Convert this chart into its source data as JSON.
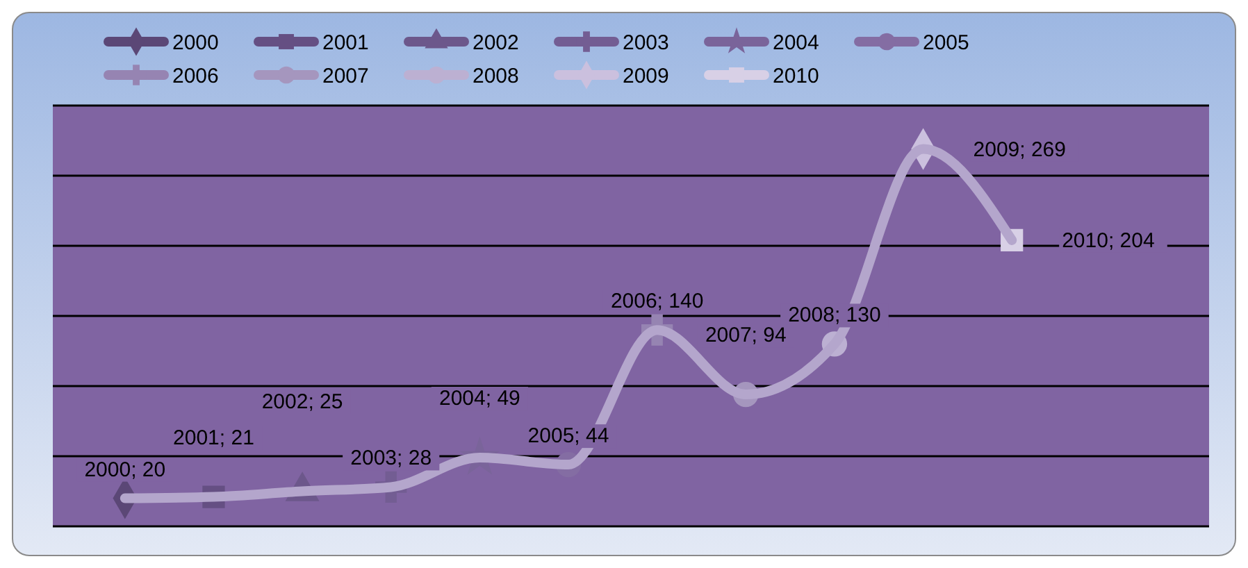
{
  "chart_data": {
    "type": "line",
    "categories": [
      null,
      null,
      null,
      null,
      null,
      null,
      null,
      null,
      null,
      null,
      null
    ],
    "ylim": [
      0,
      300
    ],
    "yticks": [
      {
        "value": 0,
        "label": null
      },
      {
        "value": 50,
        "label": null
      },
      {
        "value": 100,
        "label": null
      },
      {
        "value": 150,
        "label": null
      },
      {
        "value": 200,
        "label": null
      },
      {
        "value": 250,
        "label": null
      },
      {
        "value": 300,
        "label": null
      }
    ],
    "grid": "y",
    "legend": "top",
    "line_style": "solid",
    "series": [
      {
        "color": "#b4a6cc",
        "values": [
          20,
          21,
          25,
          28,
          49,
          44,
          140,
          94,
          130,
          269,
          204
        ]
      },
      {
        "name": "2000",
        "color": "#5b4776",
        "marker": "diamond",
        "values": [
          20,
          null,
          null,
          null,
          null,
          null,
          null,
          null,
          null,
          null,
          null
        ],
        "value_labels": [
          "2000; 20",
          null,
          null,
          null,
          null,
          null,
          null,
          null,
          null,
          null,
          null
        ]
      },
      {
        "name": "2001",
        "color": "#654f83",
        "marker": "square",
        "values": [
          null,
          21,
          null,
          null,
          null,
          null,
          null,
          null,
          null,
          null,
          null
        ],
        "value_labels": [
          null,
          "2001; 21",
          null,
          null,
          null,
          null,
          null,
          null,
          null,
          null,
          null
        ]
      },
      {
        "name": "2002",
        "color": "#6c578b",
        "marker": "triangle",
        "values": [
          null,
          null,
          25,
          null,
          null,
          null,
          null,
          null,
          null,
          null,
          null
        ],
        "value_labels": [
          null,
          null,
          "2002; 25",
          null,
          null,
          null,
          null,
          null,
          null,
          null,
          null
        ]
      },
      {
        "name": "2003",
        "color": "#735d93",
        "marker": "cross",
        "values": [
          null,
          null,
          null,
          28,
          null,
          null,
          null,
          null,
          null,
          null,
          null
        ],
        "value_labels": [
          null,
          null,
          null,
          "2003; 28",
          null,
          null,
          null,
          null,
          null,
          null,
          null
        ]
      },
      {
        "name": "2004",
        "color": "#7a649a",
        "marker": "star",
        "values": [
          null,
          null,
          null,
          null,
          49,
          null,
          null,
          null,
          null,
          null,
          null
        ],
        "value_labels": [
          null,
          null,
          null,
          null,
          "2004; 49",
          null,
          null,
          null,
          null,
          null,
          null
        ]
      },
      {
        "name": "2005",
        "color": "#846da3",
        "marker": "circle",
        "values": [
          null,
          null,
          null,
          null,
          null,
          44,
          null,
          null,
          null,
          null,
          null
        ],
        "value_labels": [
          null,
          null,
          null,
          null,
          null,
          "2005; 44",
          null,
          null,
          null,
          null,
          null
        ]
      },
      {
        "name": "2006",
        "color": "#9684b2",
        "marker": "cross",
        "values": [
          null,
          null,
          null,
          null,
          null,
          null,
          140,
          null,
          null,
          null,
          null
        ],
        "value_labels": [
          null,
          null,
          null,
          null,
          null,
          null,
          "2006; 140",
          null,
          null,
          null,
          null
        ]
      },
      {
        "name": "2007",
        "color": "#a596be",
        "marker": "circle",
        "values": [
          null,
          null,
          null,
          null,
          null,
          null,
          null,
          94,
          null,
          null,
          null
        ],
        "value_labels": [
          null,
          null,
          null,
          null,
          null,
          null,
          null,
          "2007; 94",
          null,
          null,
          null
        ]
      },
      {
        "name": "2008",
        "color": "#bcb0d2",
        "marker": "circle",
        "values": [
          null,
          null,
          null,
          null,
          null,
          null,
          null,
          null,
          130,
          null,
          null
        ],
        "value_labels": [
          null,
          null,
          null,
          null,
          null,
          null,
          null,
          null,
          "2008; 130",
          null,
          null
        ]
      },
      {
        "name": "2009",
        "color": "#cbc0de",
        "marker": "diamond",
        "values": [
          null,
          null,
          null,
          null,
          null,
          null,
          null,
          null,
          null,
          269,
          null
        ],
        "value_labels": [
          null,
          null,
          null,
          null,
          null,
          null,
          null,
          null,
          null,
          "2009; 269",
          null
        ]
      },
      {
        "name": "2010",
        "color": "#d8d0e6",
        "marker": "square",
        "values": [
          null,
          null,
          null,
          null,
          null,
          null,
          null,
          null,
          null,
          null,
          204
        ],
        "value_labels": [
          null,
          null,
          null,
          null,
          null,
          null,
          null,
          null,
          null,
          null,
          "2010; 204"
        ]
      }
    ]
  }
}
